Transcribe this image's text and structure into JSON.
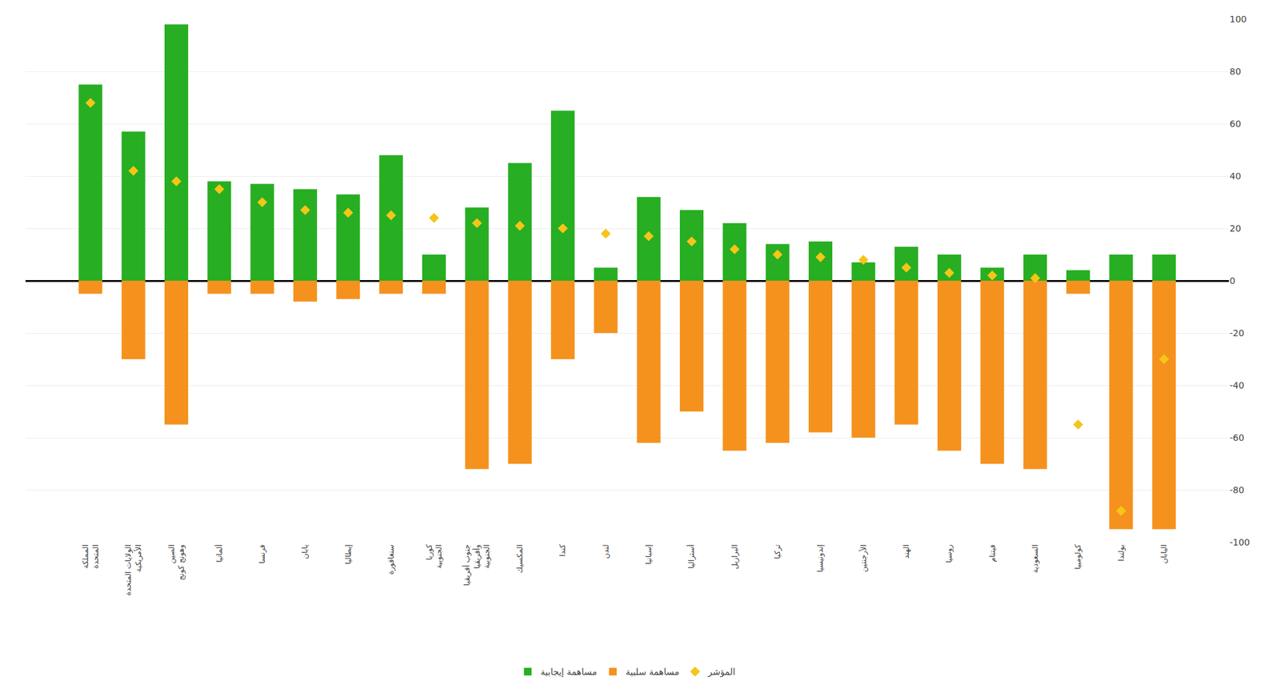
{
  "chart_data": {
    "type": "bar",
    "categories": [
      "المملكة\nالمتحدة",
      "الولايات المتحدة\nالأمريكية",
      "الصين\nوهونج كونج",
      "ألمانيا",
      "فرنسا",
      "يابان",
      "إيطاليا",
      "سنغافورة",
      "كوريا\nالجنوبية",
      "جنوب أفريقيا\nوأفريقيا\nالجنوبية",
      "المكسيك",
      "كندا",
      "لندن",
      "إسبانيا",
      "أستراليا",
      "البرازيل",
      "تركيا",
      "إندونيسيا",
      "الأرجنتين",
      "الهند",
      "روسيا",
      "فيتنام",
      "السعودية",
      "كولومبيا",
      "بولندا",
      "اليابان"
    ],
    "series": [
      {
        "name": "مساهمة إيجابية",
        "type": "bar",
        "color": "#27ae22",
        "values": [
          75,
          57,
          98,
          38,
          37,
          35,
          33,
          48,
          10,
          28,
          45,
          65,
          5,
          32,
          27,
          22,
          14,
          15,
          7,
          13,
          10,
          5,
          10,
          4,
          10,
          10
        ]
      },
      {
        "name": "مساهمة سلبية",
        "type": "bar",
        "color": "#f5921e",
        "values": [
          -5,
          -30,
          -55,
          -5,
          -5,
          -8,
          -7,
          -5,
          -5,
          -72,
          -70,
          -30,
          -20,
          -62,
          -50,
          -65,
          -62,
          -58,
          -60,
          -55,
          -65,
          -70,
          -72,
          -5,
          -95,
          -95
        ]
      },
      {
        "name": "المؤشر",
        "type": "scatter",
        "marker": "diamond",
        "color": "#f5c518",
        "values": [
          68,
          42,
          38,
          35,
          30,
          27,
          26,
          25,
          24,
          22,
          21,
          20,
          18,
          17,
          15,
          12,
          10,
          9,
          8,
          5,
          3,
          2,
          1,
          -55,
          -88,
          -30
        ]
      }
    ],
    "ylim": [
      -100,
      100
    ],
    "yticks": [
      -100,
      -80,
      -60,
      -40,
      -20,
      0,
      20,
      40,
      60,
      80,
      100
    ],
    "grid": true,
    "legend": "bottom"
  }
}
